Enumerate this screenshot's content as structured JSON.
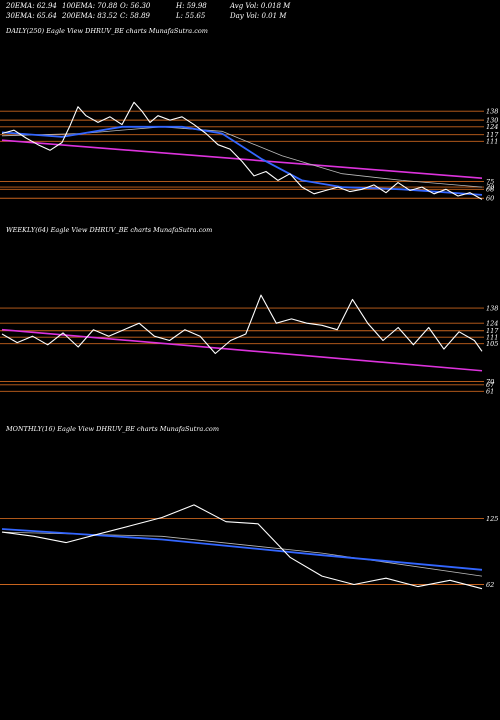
{
  "stats": {
    "row1": [
      {
        "label": "20EMA:",
        "value": "62.94"
      },
      {
        "label": "100EMA:",
        "value": "70.88"
      },
      {
        "label": "O:",
        "value": "56.30"
      },
      {
        "label": "H:",
        "value": "59.98"
      },
      {
        "label": "Avg Vol:",
        "value": "0.018  M"
      }
    ],
    "row2": [
      {
        "label": "30EMA:",
        "value": "65.64"
      },
      {
        "label": "200EMA:",
        "value": "83.52"
      },
      {
        "label": "C:",
        "value": "58.89"
      },
      {
        "label": "L:",
        "value": "55.65"
      },
      {
        "label": "Day Vol:",
        "value": "0.01  M"
      }
    ]
  },
  "panels": {
    "daily": {
      "title": "DAILY(250) Eagle   View  DHRUV_BE charts MunafaSutra.com"
    },
    "weekly": {
      "title": "WEEKLY(64) Eagle   View  DHRUV_BE charts MunafaSutra.com"
    },
    "monthly": {
      "title": "MONTHLY(16) Eagle   View  DHRUV_BE charts MunafaSutra.com"
    }
  },
  "colors": {
    "background": "#000000",
    "price": "#ffffff",
    "ema_blue": "#3366ff",
    "trend_magenta": "#dd33dd",
    "level_orange": "#c8641e"
  },
  "chart_data": [
    {
      "type": "line",
      "name": "daily",
      "title": "DAILY(250) Eagle   View  DHRUV_BE charts MunafaSutra.com",
      "ylim": [
        45,
        200
      ],
      "level_labels": [
        "138",
        "130",
        "124",
        "117",
        "111",
        "75",
        "70",
        "68",
        "60"
      ],
      "levels": [
        138,
        130,
        124,
        117,
        111,
        75,
        70,
        68,
        60
      ],
      "trendline": [
        [
          0,
          112
        ],
        [
          240,
          78
        ]
      ],
      "price": [
        {
          "x": 0,
          "y": 118
        },
        {
          "x": 6,
          "y": 121
        },
        {
          "x": 12,
          "y": 114
        },
        {
          "x": 18,
          "y": 108
        },
        {
          "x": 24,
          "y": 103
        },
        {
          "x": 30,
          "y": 110
        },
        {
          "x": 34,
          "y": 125
        },
        {
          "x": 38,
          "y": 142
        },
        {
          "x": 42,
          "y": 134
        },
        {
          "x": 48,
          "y": 128
        },
        {
          "x": 54,
          "y": 133
        },
        {
          "x": 60,
          "y": 126
        },
        {
          "x": 66,
          "y": 146
        },
        {
          "x": 70,
          "y": 138
        },
        {
          "x": 74,
          "y": 128
        },
        {
          "x": 78,
          "y": 134
        },
        {
          "x": 84,
          "y": 130
        },
        {
          "x": 90,
          "y": 133
        },
        {
          "x": 96,
          "y": 126
        },
        {
          "x": 102,
          "y": 118
        },
        {
          "x": 108,
          "y": 108
        },
        {
          "x": 114,
          "y": 104
        },
        {
          "x": 120,
          "y": 93
        },
        {
          "x": 126,
          "y": 80
        },
        {
          "x": 132,
          "y": 84
        },
        {
          "x": 138,
          "y": 76
        },
        {
          "x": 144,
          "y": 82
        },
        {
          "x": 150,
          "y": 70
        },
        {
          "x": 156,
          "y": 64
        },
        {
          "x": 162,
          "y": 67
        },
        {
          "x": 168,
          "y": 70
        },
        {
          "x": 174,
          "y": 66
        },
        {
          "x": 180,
          "y": 68
        },
        {
          "x": 186,
          "y": 72
        },
        {
          "x": 192,
          "y": 65
        },
        {
          "x": 198,
          "y": 74
        },
        {
          "x": 204,
          "y": 67
        },
        {
          "x": 210,
          "y": 70
        },
        {
          "x": 216,
          "y": 64
        },
        {
          "x": 222,
          "y": 68
        },
        {
          "x": 228,
          "y": 62
        },
        {
          "x": 234,
          "y": 65
        },
        {
          "x": 240,
          "y": 59
        }
      ],
      "ema_blue": [
        {
          "x": 0,
          "y": 119
        },
        {
          "x": 30,
          "y": 115
        },
        {
          "x": 60,
          "y": 124
        },
        {
          "x": 90,
          "y": 124
        },
        {
          "x": 110,
          "y": 118
        },
        {
          "x": 130,
          "y": 95
        },
        {
          "x": 150,
          "y": 76
        },
        {
          "x": 170,
          "y": 70
        },
        {
          "x": 200,
          "y": 68
        },
        {
          "x": 240,
          "y": 63
        }
      ],
      "ema_slow": [
        {
          "x": 0,
          "y": 116
        },
        {
          "x": 40,
          "y": 118
        },
        {
          "x": 80,
          "y": 124
        },
        {
          "x": 110,
          "y": 120
        },
        {
          "x": 140,
          "y": 98
        },
        {
          "x": 170,
          "y": 82
        },
        {
          "x": 200,
          "y": 76
        },
        {
          "x": 240,
          "y": 70
        }
      ]
    },
    {
      "type": "line",
      "name": "weekly",
      "title": "WEEKLY(64) Eagle   View  DHRUV_BE charts MunafaSutra.com",
      "ylim": [
        40,
        200
      ],
      "level_labels": [
        "138",
        "124",
        "117",
        "111",
        "105",
        "70",
        "67",
        "61"
      ],
      "levels": [
        138,
        124,
        117,
        111,
        105,
        70,
        67,
        61
      ],
      "trendline": [
        [
          0,
          118
        ],
        [
          63,
          80
        ]
      ],
      "price": [
        {
          "x": 0,
          "y": 114
        },
        {
          "x": 2,
          "y": 106
        },
        {
          "x": 4,
          "y": 112
        },
        {
          "x": 6,
          "y": 104
        },
        {
          "x": 8,
          "y": 115
        },
        {
          "x": 10,
          "y": 102
        },
        {
          "x": 12,
          "y": 118
        },
        {
          "x": 14,
          "y": 112
        },
        {
          "x": 16,
          "y": 118
        },
        {
          "x": 18,
          "y": 124
        },
        {
          "x": 20,
          "y": 112
        },
        {
          "x": 22,
          "y": 108
        },
        {
          "x": 24,
          "y": 118
        },
        {
          "x": 26,
          "y": 112
        },
        {
          "x": 28,
          "y": 96
        },
        {
          "x": 30,
          "y": 108
        },
        {
          "x": 32,
          "y": 114
        },
        {
          "x": 34,
          "y": 150
        },
        {
          "x": 36,
          "y": 124
        },
        {
          "x": 38,
          "y": 128
        },
        {
          "x": 40,
          "y": 124
        },
        {
          "x": 42,
          "y": 122
        },
        {
          "x": 44,
          "y": 118
        },
        {
          "x": 46,
          "y": 146
        },
        {
          "x": 48,
          "y": 124
        },
        {
          "x": 50,
          "y": 108
        },
        {
          "x": 52,
          "y": 120
        },
        {
          "x": 54,
          "y": 104
        },
        {
          "x": 56,
          "y": 120
        },
        {
          "x": 58,
          "y": 100
        },
        {
          "x": 60,
          "y": 116
        },
        {
          "x": 62,
          "y": 108
        },
        {
          "x": 63,
          "y": 98
        }
      ]
    },
    {
      "type": "line",
      "name": "monthly",
      "title": "MONTHLY(16) Eagle   View  DHRUV_BE charts MunafaSutra.com",
      "ylim": [
        30,
        200
      ],
      "level_labels": [
        "125",
        "62"
      ],
      "levels": [
        125,
        62
      ],
      "price": [
        {
          "x": 0,
          "y": 112
        },
        {
          "x": 1,
          "y": 108
        },
        {
          "x": 2,
          "y": 102
        },
        {
          "x": 3,
          "y": 110
        },
        {
          "x": 4,
          "y": 118
        },
        {
          "x": 5,
          "y": 126
        },
        {
          "x": 6,
          "y": 138
        },
        {
          "x": 7,
          "y": 122
        },
        {
          "x": 8,
          "y": 120
        },
        {
          "x": 9,
          "y": 88
        },
        {
          "x": 10,
          "y": 70
        },
        {
          "x": 11,
          "y": 62
        },
        {
          "x": 12,
          "y": 68
        },
        {
          "x": 13,
          "y": 60
        },
        {
          "x": 14,
          "y": 66
        },
        {
          "x": 15,
          "y": 58
        }
      ],
      "ema_blue": [
        {
          "x": 0,
          "y": 115
        },
        {
          "x": 5,
          "y": 105
        },
        {
          "x": 10,
          "y": 90
        },
        {
          "x": 15,
          "y": 76
        }
      ],
      "ema_slow": [
        {
          "x": 0,
          "y": 112
        },
        {
          "x": 5,
          "y": 108
        },
        {
          "x": 10,
          "y": 92
        },
        {
          "x": 15,
          "y": 70
        }
      ]
    }
  ]
}
